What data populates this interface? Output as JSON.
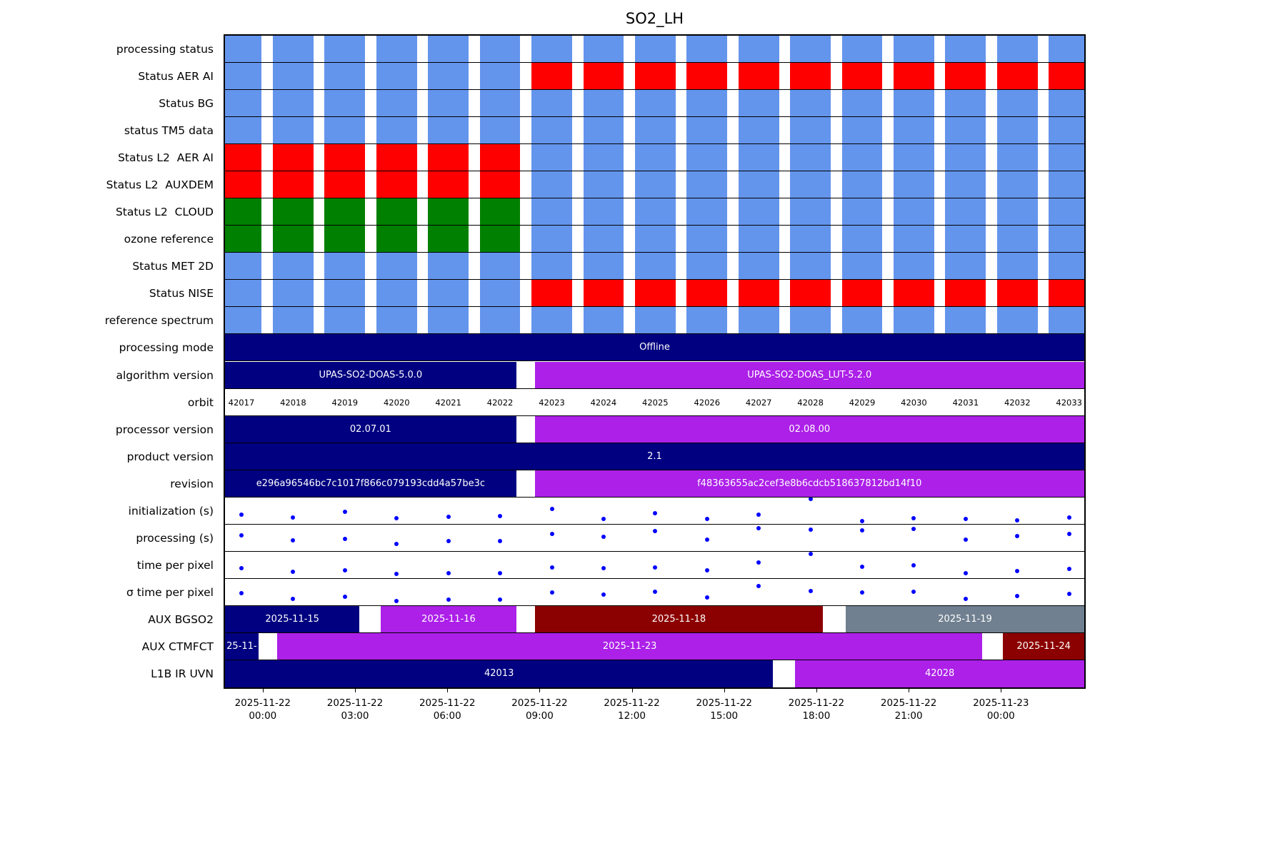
{
  "title": "SO2_LH",
  "colors": {
    "blue": "#6495ED",
    "red": "#FF0000",
    "green": "#008000",
    "navy": "#000080",
    "purple": "#AC20E8",
    "darkred": "#8B0000",
    "gray": "#708090",
    "dot": "#0000FF"
  },
  "chart_data": {
    "type": "heatmap",
    "title": "SO2_LH",
    "description": "Per-orbit processing status timeline with status blocks, version bars and timing scatter rows",
    "legend_position": "none",
    "grid": false,
    "orbits": [
      42017,
      42018,
      42019,
      42020,
      42021,
      42022,
      42023,
      42024,
      42025,
      42026,
      42027,
      42028,
      42029,
      42030,
      42031,
      42032,
      42033
    ],
    "layout": {
      "orbit_start_frac": 0.0191,
      "orbit_step_frac": 0.0602,
      "block_width_frac": 0.0472
    },
    "x_ticks": [
      {
        "frac": 0.0439,
        "line1": "2025-11-22",
        "line2": "00:00"
      },
      {
        "frac": 0.1513,
        "line1": "2025-11-22",
        "line2": "03:00"
      },
      {
        "frac": 0.2587,
        "line1": "2025-11-22",
        "line2": "06:00"
      },
      {
        "frac": 0.3661,
        "line1": "2025-11-22",
        "line2": "09:00"
      },
      {
        "frac": 0.4734,
        "line1": "2025-11-22",
        "line2": "12:00"
      },
      {
        "frac": 0.5808,
        "line1": "2025-11-22",
        "line2": "15:00"
      },
      {
        "frac": 0.6882,
        "line1": "2025-11-22",
        "line2": "18:00"
      },
      {
        "frac": 0.7956,
        "line1": "2025-11-22",
        "line2": "21:00"
      },
      {
        "frac": 0.903,
        "line1": "2025-11-23",
        "line2": "00:00"
      }
    ],
    "rows": [
      {
        "name": "processing status",
        "kind": "blocks",
        "colors_rle": [
          [
            "blue",
            17
          ]
        ]
      },
      {
        "name": "Status AER AI",
        "kind": "blocks",
        "colors_rle": [
          [
            "blue",
            6
          ],
          [
            "red",
            11
          ]
        ]
      },
      {
        "name": "Status BG",
        "kind": "blocks",
        "colors_rle": [
          [
            "blue",
            17
          ]
        ]
      },
      {
        "name": "status TM5 data",
        "kind": "blocks",
        "colors_rle": [
          [
            "blue",
            17
          ]
        ]
      },
      {
        "name": "Status L2  AER AI",
        "kind": "blocks",
        "colors_rle": [
          [
            "red",
            6
          ],
          [
            "blue",
            11
          ]
        ]
      },
      {
        "name": "Status L2  AUXDEM",
        "kind": "blocks",
        "colors_rle": [
          [
            "red",
            6
          ],
          [
            "blue",
            11
          ]
        ]
      },
      {
        "name": "Status L2  CLOUD",
        "kind": "blocks",
        "colors_rle": [
          [
            "green",
            6
          ],
          [
            "blue",
            11
          ]
        ]
      },
      {
        "name": "ozone reference",
        "kind": "blocks",
        "colors_rle": [
          [
            "green",
            6
          ],
          [
            "blue",
            11
          ]
        ]
      },
      {
        "name": "Status MET 2D",
        "kind": "blocks",
        "colors_rle": [
          [
            "blue",
            17
          ]
        ]
      },
      {
        "name": "Status NISE",
        "kind": "blocks",
        "colors_rle": [
          [
            "blue",
            6
          ],
          [
            "red",
            11
          ]
        ]
      },
      {
        "name": "reference spectrum",
        "kind": "blocks",
        "colors_rle": [
          [
            "blue",
            17
          ]
        ]
      },
      {
        "name": "processing mode",
        "kind": "bars",
        "bars": [
          {
            "start": 0,
            "end": 1,
            "color": "navy",
            "label": "Offline"
          }
        ]
      },
      {
        "name": "algorithm version",
        "kind": "bars",
        "bars": [
          {
            "start": 0,
            "end": 0.3389,
            "color": "navy",
            "label": "UPAS-SO2-DOAS-5.0.0"
          },
          {
            "start": 0.3604,
            "end": 1,
            "color": "purple",
            "label": "UPAS-SO2-DOAS_LUT-5.2.0"
          }
        ]
      },
      {
        "name": "orbit",
        "kind": "orbit_labels"
      },
      {
        "name": "processor version",
        "kind": "bars",
        "bars": [
          {
            "start": 0,
            "end": 0.3389,
            "color": "navy",
            "label": "02.07.01"
          },
          {
            "start": 0.3604,
            "end": 1,
            "color": "purple",
            "label": "02.08.00"
          }
        ]
      },
      {
        "name": "product version",
        "kind": "bars",
        "bars": [
          {
            "start": 0,
            "end": 1,
            "color": "navy",
            "label": "2.1"
          }
        ]
      },
      {
        "name": "revision",
        "kind": "bars",
        "bars": [
          {
            "start": 0,
            "end": 0.3389,
            "color": "navy",
            "label": "e296a96546bc7c1017f866c079193cdd4a57be3c"
          },
          {
            "start": 0.3604,
            "end": 1,
            "color": "purple",
            "label": "f48363655ac2cef3e8b6cdcb518637812bd14f10"
          }
        ]
      },
      {
        "name": "initialization (s)",
        "kind": "scatter",
        "values": [
          0.37,
          0.26,
          0.47,
          0.24,
          0.29,
          0.31,
          0.58,
          0.21,
          0.42,
          0.21,
          0.37,
          0.94,
          0.13,
          0.24,
          0.21,
          0.16,
          0.26
        ]
      },
      {
        "name": "processing (s)",
        "kind": "scatter",
        "values": [
          0.6,
          0.42,
          0.47,
          0.29,
          0.39,
          0.39,
          0.65,
          0.55,
          0.76,
          0.44,
          0.86,
          0.8,
          0.79,
          0.84,
          0.44,
          0.58,
          0.65
        ]
      },
      {
        "name": "time per pixel",
        "kind": "scatter",
        "values": [
          0.39,
          0.26,
          0.31,
          0.18,
          0.21,
          0.21,
          0.42,
          0.39,
          0.42,
          0.31,
          0.6,
          0.92,
          0.45,
          0.5,
          0.21,
          0.29,
          0.37
        ]
      },
      {
        "name": "σ time per pixel",
        "kind": "scatter",
        "values": [
          0.47,
          0.26,
          0.34,
          0.18,
          0.24,
          0.24,
          0.5,
          0.42,
          0.52,
          0.31,
          0.73,
          0.55,
          0.5,
          0.52,
          0.26,
          0.37,
          0.45
        ]
      },
      {
        "name": "AUX BGSO2",
        "kind": "bars",
        "bars": [
          {
            "start": 0,
            "end": 0.1566,
            "color": "navy",
            "label": "2025-11-15"
          },
          {
            "start": 0.1814,
            "end": 0.3389,
            "color": "purple",
            "label": "2025-11-16"
          },
          {
            "start": 0.3604,
            "end": 0.6959,
            "color": "darkred",
            "label": "2025-11-18"
          },
          {
            "start": 0.7225,
            "end": 1,
            "color": "gray",
            "label": "2025-11-19"
          }
        ]
      },
      {
        "name": "AUX CTMFCT",
        "kind": "bars",
        "bars": [
          {
            "start": 0,
            "end": 0.0389,
            "color": "navy",
            "label": "25-11-"
          },
          {
            "start": 0.0605,
            "end": 0.8815,
            "color": "purple",
            "label": "2025-11-23"
          },
          {
            "start": 0.9055,
            "end": 1,
            "color": "darkred",
            "label": "2025-11-24"
          }
        ]
      },
      {
        "name": "L1B IR UVN",
        "kind": "bars",
        "bars": [
          {
            "start": 0,
            "end": 0.6379,
            "color": "navy",
            "label": "42013"
          },
          {
            "start": 0.6636,
            "end": 1,
            "color": "purple",
            "label": "42028"
          }
        ]
      }
    ]
  }
}
